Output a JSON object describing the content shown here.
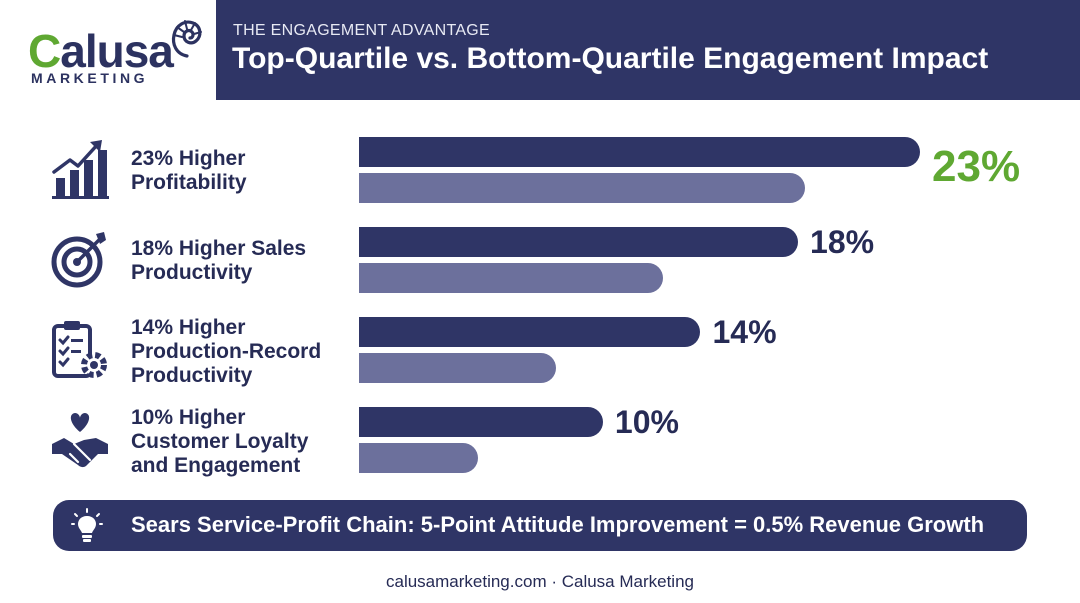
{
  "brand": {
    "logo_text_first": "C",
    "logo_text_rest": "alusa",
    "logo_sub": "MARKETING"
  },
  "header": {
    "kicker": "THE ENGAGEMENT ADVANTAGE",
    "title": "Top-Quartile vs. Bottom-Quartile Engagement Impact"
  },
  "chart_data": {
    "type": "bar",
    "title": "Top-Quartile vs. Bottom-Quartile Engagement Impact",
    "categories": [
      "23% Higher Profitability",
      "18% Higher Sales Productivity",
      "14% Higher Production-Record Productivity",
      "10% Higher Customer Loyalty and Engagement"
    ],
    "values": [
      23,
      18,
      14,
      10
    ],
    "value_labels": [
      "23%",
      "18%",
      "14%",
      "10%"
    ],
    "unit": "%",
    "orientation": "horizontal",
    "grid": false,
    "legend": "none",
    "bar_colors": {
      "top": "#2f3566",
      "bottom": "#6c709c"
    },
    "highlight_color": "#5fa832"
  },
  "rows": [
    {
      "label_lines": [
        "23% Higher",
        "Profitability"
      ],
      "icon": "growth-chart-icon"
    },
    {
      "label_lines": [
        "18% Higher Sales",
        "Productivity"
      ],
      "icon": "target-icon"
    },
    {
      "label_lines": [
        "14% Higher",
        "Production-Record",
        "Productivity"
      ],
      "icon": "clipboard-gear-icon"
    },
    {
      "label_lines": [
        "10% Higher",
        "Customer Loyalty",
        "and Engagement"
      ],
      "icon": "handshake-heart-icon"
    }
  ],
  "callout": {
    "icon": "lightbulb-icon",
    "text": "Sears Service-Profit Chain: 5-Point Attitude Improvement = 0.5% Revenue Growth"
  },
  "footer": {
    "text": "calusamarketing.com · Calusa Marketing"
  },
  "colors": {
    "navy": "#2f3566",
    "slate": "#6c709c",
    "green": "#5fa832",
    "text": "#262b55"
  }
}
